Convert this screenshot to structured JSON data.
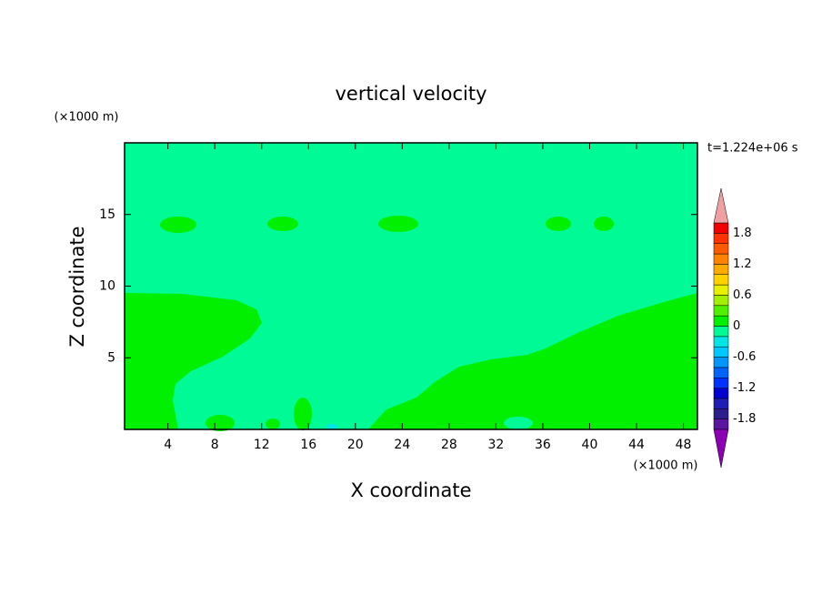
{
  "chart_data": {
    "type": "contour",
    "title": "vertical velocity",
    "xlabel": "X coordinate",
    "ylabel": "Z coordinate",
    "x_unit": "(×1000 m)",
    "y_unit": "(×1000 m)",
    "time_label": "t=1.224e+06 s",
    "xlim": [
      0.3,
      49.2
    ],
    "xticks": [
      4,
      8,
      12,
      16,
      20,
      24,
      28,
      32,
      36,
      40,
      44,
      48
    ],
    "ylim": [
      0,
      20
    ],
    "yticks": [
      5,
      10,
      15
    ],
    "levels": [
      -2,
      -1.8,
      -1.6,
      -1.4,
      -1.2,
      -1,
      -0.8,
      -0.6,
      -0.4,
      -0.2,
      0,
      0.2,
      0.4,
      0.6,
      0.8,
      1,
      1.2,
      1.4,
      1.6,
      1.8,
      2
    ],
    "colorbar_ticks": [
      -1.8,
      -1.2,
      -0.6,
      0,
      0.6,
      1.2,
      1.8
    ],
    "colors": [
      "#8c00b4",
      "#5a14a0",
      "#2d1e8c",
      "#1e1eb4",
      "#0000d2",
      "#0032ff",
      "#0064ff",
      "#0096ff",
      "#00c8ff",
      "#00e6e6",
      "#00fa96",
      "#00f000",
      "#50f000",
      "#a0f000",
      "#e6f000",
      "#ffd200",
      "#ffaa00",
      "#ff8200",
      "#ff5a00",
      "#ff3200",
      "#f00000",
      "#f0a0a0"
    ]
  }
}
